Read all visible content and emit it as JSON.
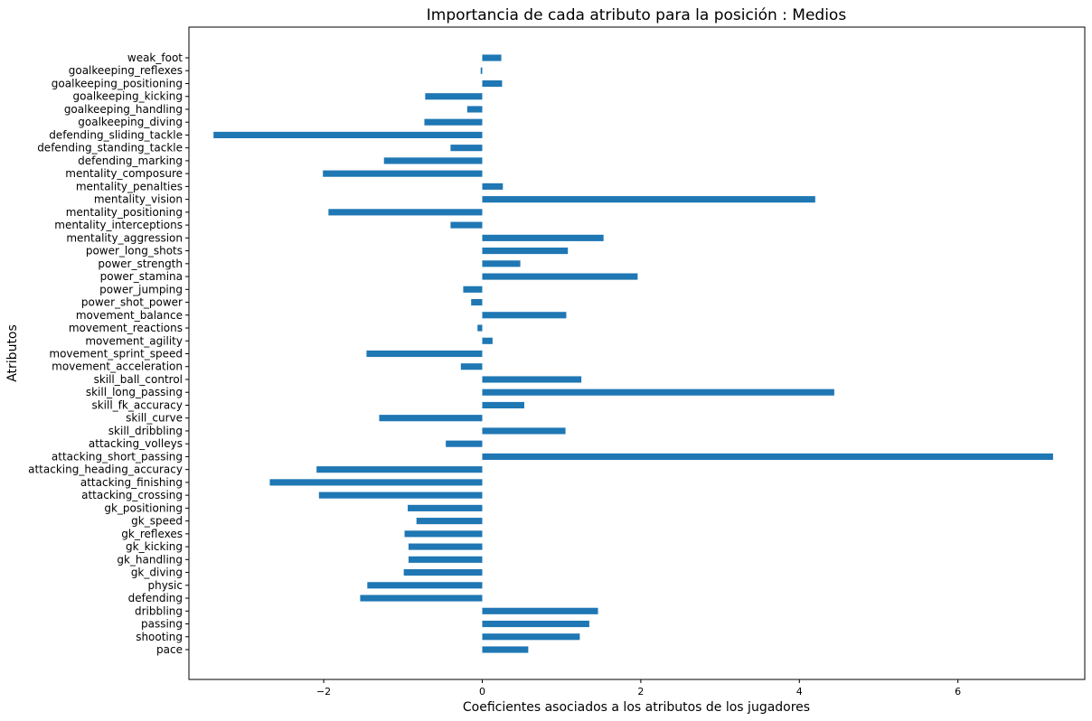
{
  "chart_data": {
    "type": "bar",
    "orientation": "horizontal",
    "title": "Importancia de cada atributo para la posición : Medios",
    "xlabel": "Coeficientes asociados a los atributos de los jugadores",
    "ylabel": "Atributos",
    "xlim": [
      -3.7,
      7.6
    ],
    "xticks": [
      -2,
      0,
      2,
      4,
      6
    ],
    "xtick_labels": [
      "−2",
      "0",
      "2",
      "4",
      "6"
    ],
    "grid": false,
    "legend": "none",
    "bar_color": "#1f77b4",
    "categories": [
      "pace",
      "shooting",
      "passing",
      "dribbling",
      "defending",
      "physic",
      "gk_diving",
      "gk_handling",
      "gk_kicking",
      "gk_reflexes",
      "gk_speed",
      "gk_positioning",
      "attacking_crossing",
      "attacking_finishing",
      "attacking_heading_accuracy",
      "attacking_short_passing",
      "attacking_volleys",
      "skill_dribbling",
      "skill_curve",
      "skill_fk_accuracy",
      "skill_long_passing",
      "skill_ball_control",
      "movement_acceleration",
      "movement_sprint_speed",
      "movement_agility",
      "movement_reactions",
      "movement_balance",
      "power_shot_power",
      "power_jumping",
      "power_stamina",
      "power_strength",
      "power_long_shots",
      "mentality_aggression",
      "mentality_interceptions",
      "mentality_positioning",
      "mentality_vision",
      "mentality_penalties",
      "mentality_composure",
      "defending_marking",
      "defending_standing_tackle",
      "defending_sliding_tackle",
      "goalkeeping_diving",
      "goalkeeping_handling",
      "goalkeeping_kicking",
      "goalkeeping_positioning",
      "goalkeeping_reflexes",
      "weak_foot"
    ],
    "values": [
      0.58,
      1.23,
      1.35,
      1.46,
      -1.54,
      -1.45,
      -0.99,
      -0.93,
      -0.93,
      -0.98,
      -0.83,
      -0.94,
      -2.06,
      -2.68,
      -2.09,
      7.2,
      -0.46,
      1.05,
      -1.3,
      0.53,
      4.44,
      1.25,
      -0.27,
      -1.46,
      0.13,
      -0.06,
      1.06,
      -0.14,
      -0.24,
      1.96,
      0.48,
      1.08,
      1.53,
      -0.4,
      -1.94,
      4.2,
      0.26,
      -2.01,
      -1.24,
      -0.4,
      -3.39,
      -0.73,
      -0.19,
      -0.72,
      0.25,
      -0.02,
      0.24
    ]
  }
}
